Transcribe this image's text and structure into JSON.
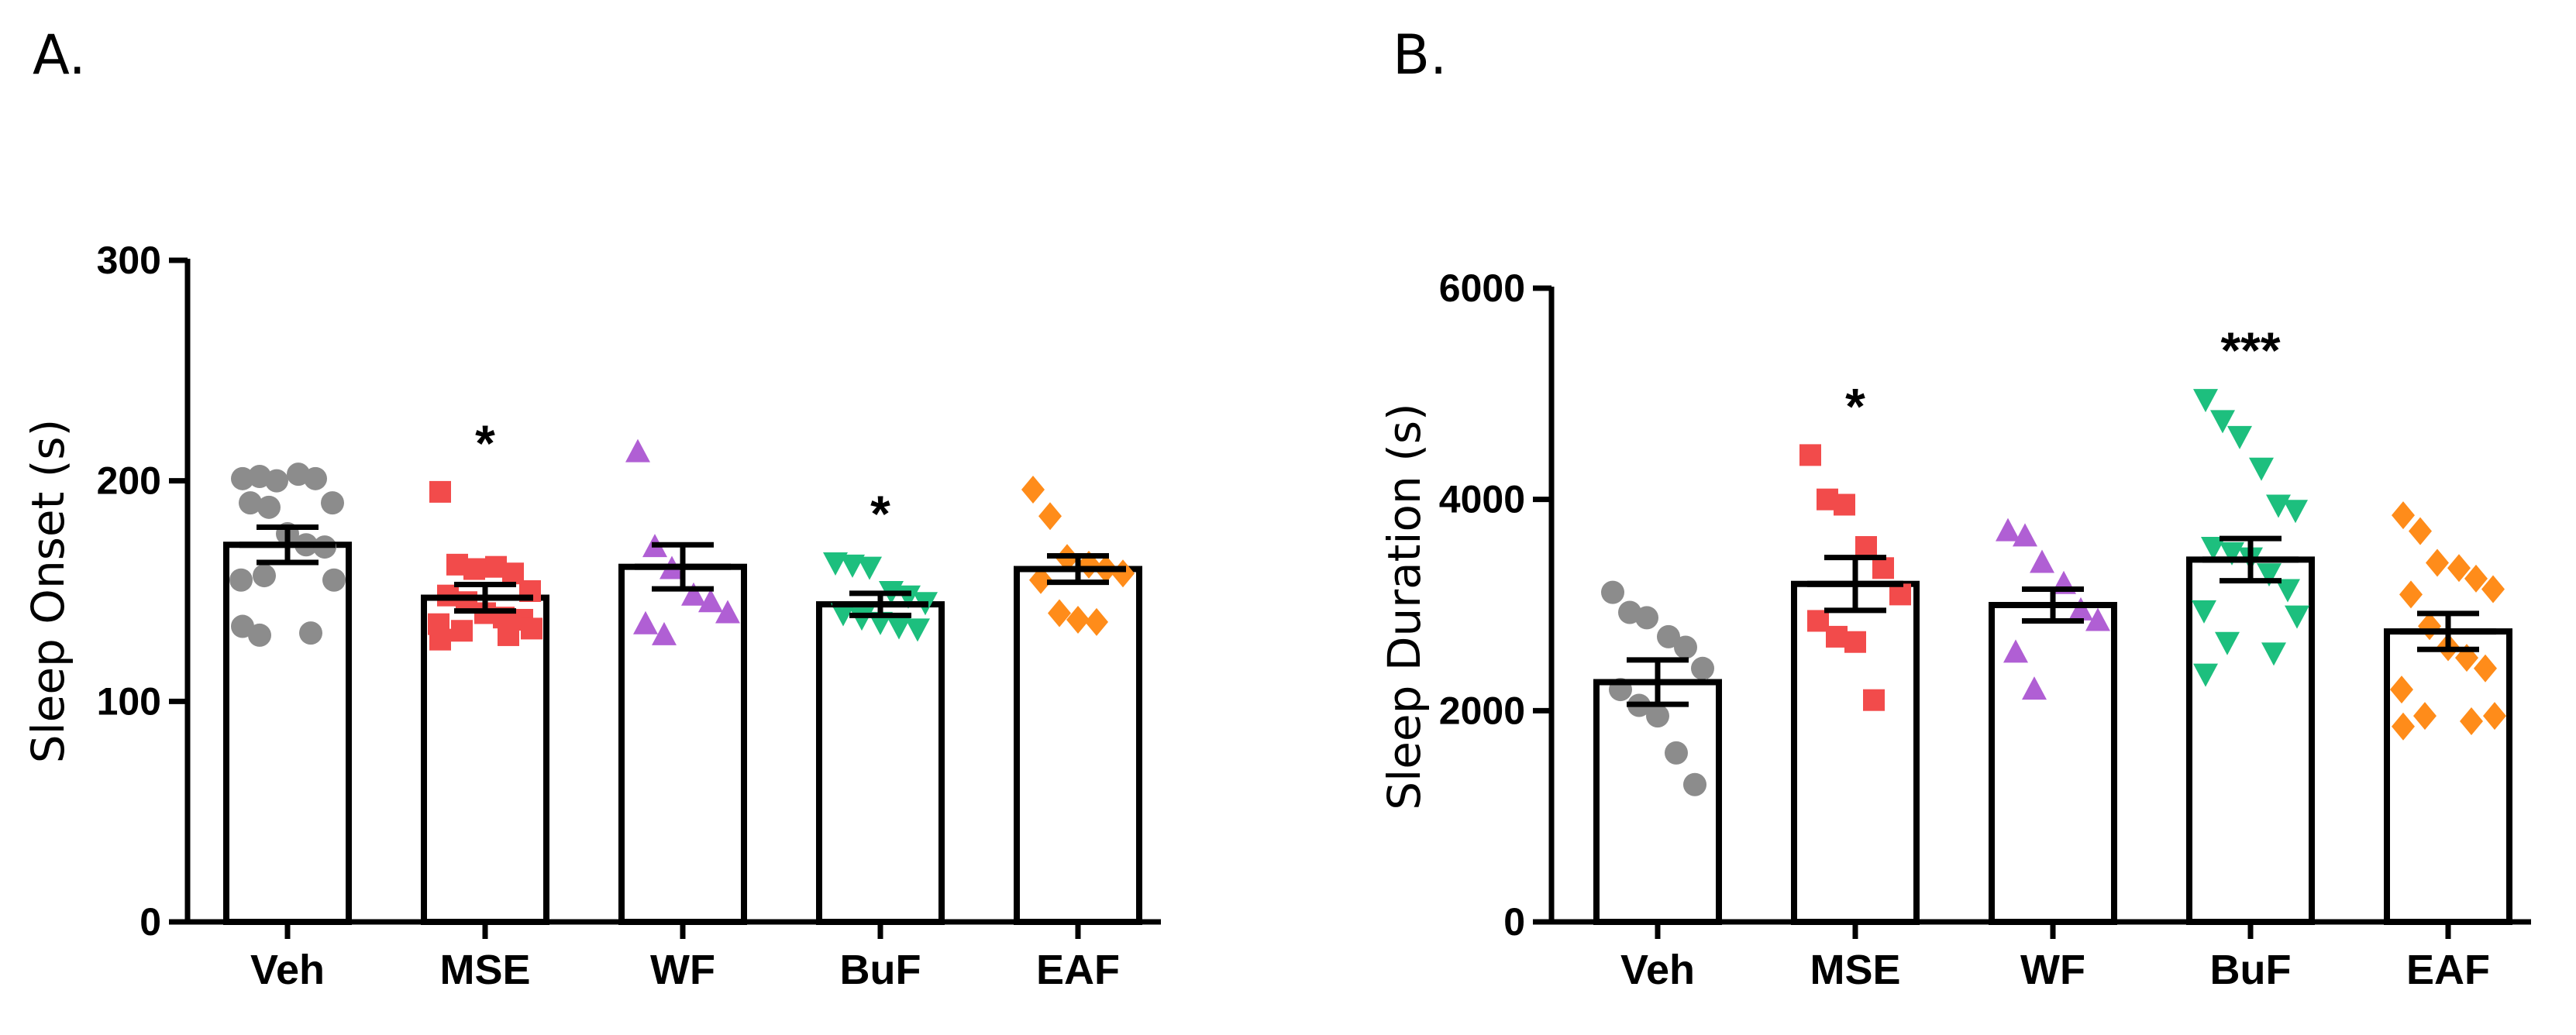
{
  "panel_labels": [
    "A.",
    "B."
  ],
  "chart_data": [
    {
      "type": "bar",
      "panel": "A.",
      "title": "",
      "xlabel": "",
      "ylabel": "Sleep Onset (s)",
      "ylim": [
        0,
        300
      ],
      "yticks": [
        "0",
        "100",
        "200",
        "300"
      ],
      "categories": [
        "Veh",
        "MSE",
        "WF",
        "BuF",
        "EAF"
      ],
      "values": [
        171,
        147,
        161,
        144,
        160
      ],
      "sem": [
        8,
        6,
        10,
        5,
        6
      ],
      "significance": [
        "",
        "*",
        "",
        "*",
        ""
      ],
      "point_colors": [
        "#8c8c8c",
        "#f24b4b",
        "#b05fd4",
        "#1dbf7e",
        "#ff8c1a"
      ],
      "point_shapes": [
        "circle",
        "square",
        "triangle-up",
        "triangle-down",
        "diamond"
      ],
      "points": [
        [
          201,
          202,
          200,
          203,
          201,
          190,
          190,
          188,
          176,
          171,
          170,
          155,
          155,
          157,
          131,
          134,
          130
        ],
        [
          195,
          162,
          160,
          161,
          158,
          150,
          148,
          145,
          140,
          138,
          137,
          135,
          133,
          132,
          130,
          128
        ],
        [
          213,
          170,
          160,
          148,
          145,
          140,
          135,
          130
        ],
        [
          163,
          162,
          161,
          150,
          148,
          145,
          140,
          138,
          136,
          134,
          133
        ],
        [
          196,
          184,
          165,
          162,
          160,
          158,
          155,
          140,
          137,
          136
        ]
      ]
    },
    {
      "type": "bar",
      "panel": "B.",
      "title": "",
      "xlabel": "",
      "ylabel": "Sleep Duration (s)",
      "ylim": [
        0,
        6000
      ],
      "yticks": [
        "0",
        "2000",
        "4000",
        "6000"
      ],
      "categories": [
        "Veh",
        "MSE",
        "WF",
        "BuF",
        "EAF"
      ],
      "values": [
        2270,
        3200,
        3000,
        3430,
        2750
      ],
      "sem": [
        210,
        250,
        150,
        200,
        170
      ],
      "significance": [
        "",
        "*",
        "",
        "***",
        ""
      ],
      "point_colors": [
        "#8c8c8c",
        "#f24b4b",
        "#b05fd4",
        "#1dbf7e",
        "#ff8c1a"
      ],
      "point_shapes": [
        "circle",
        "square",
        "triangle-up",
        "triangle-down",
        "diamond"
      ],
      "points": [
        [
          3120,
          2930,
          2880,
          2700,
          2600,
          2400,
          2200,
          2050,
          1950,
          1600,
          1300
        ],
        [
          4420,
          4000,
          3950,
          3550,
          3350,
          3100,
          2850,
          2700,
          2650,
          2100
        ],
        [
          3700,
          3650,
          3400,
          3200,
          2950,
          2850,
          2550,
          2200
        ],
        [
          4950,
          4750,
          4600,
          4300,
          3950,
          3900,
          3550,
          3500,
          3450,
          3300,
          3150,
          2950,
          2900,
          2650,
          2550,
          2350
        ],
        [
          3850,
          3700,
          3400,
          3350,
          3250,
          3150,
          3100,
          2800,
          2600,
          2500,
          2400,
          2200,
          1950,
          1950,
          1900,
          1850
        ]
      ]
    }
  ]
}
